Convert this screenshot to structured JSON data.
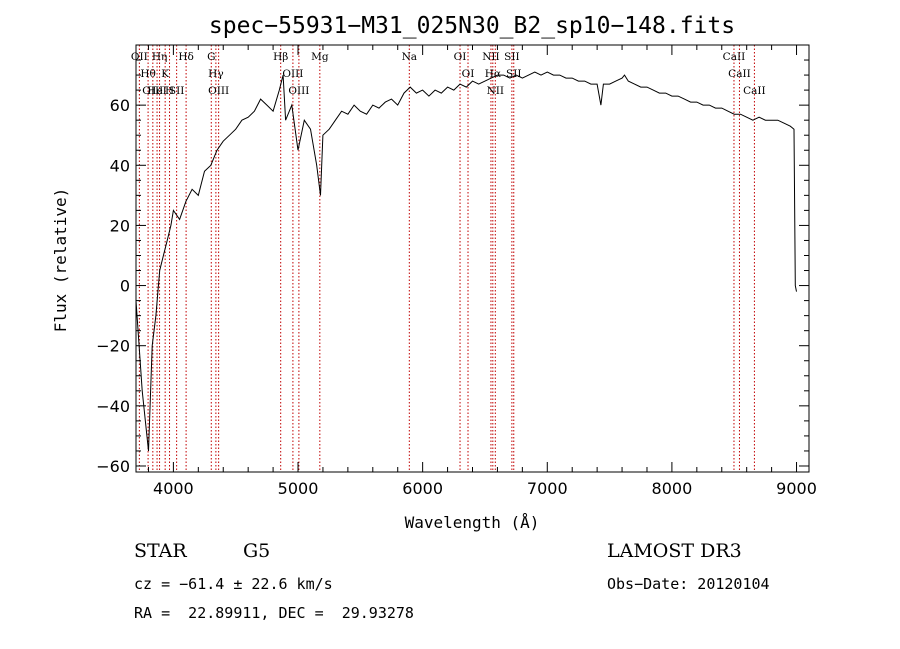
{
  "chart_data": {
    "type": "line",
    "title": "spec−55931−M31_025N30_B2_sp10−148.fits",
    "xlabel": "Wavelength (Å)",
    "ylabel": "Flux (relative)",
    "xlim": [
      3700,
      9100
    ],
    "ylim": [
      -62,
      80
    ],
    "x_ticks": [
      4000,
      5000,
      6000,
      7000,
      8000,
      9000
    ],
    "x_tick_labels": [
      "4000",
      "5000",
      "6000",
      "7000",
      "8000",
      "9000"
    ],
    "y_ticks": [
      -60,
      -40,
      -20,
      0,
      20,
      40,
      60
    ],
    "y_tick_labels": [
      "−60",
      "−40",
      "−20",
      "0",
      "20",
      "40",
      "60"
    ],
    "series": [
      {
        "name": "spectrum",
        "color": "#000000",
        "x": [
          3700,
          3750,
          3800,
          3830,
          3860,
          3890,
          3920,
          3950,
          3980,
          4000,
          4050,
          4100,
          4150,
          4200,
          4250,
          4300,
          4350,
          4400,
          4450,
          4500,
          4550,
          4600,
          4650,
          4700,
          4750,
          4800,
          4850,
          4880,
          4900,
          4950,
          5000,
          5050,
          5100,
          5150,
          5180,
          5200,
          5250,
          5300,
          5350,
          5400,
          5450,
          5500,
          5550,
          5600,
          5650,
          5700,
          5750,
          5800,
          5850,
          5900,
          5950,
          6000,
          6050,
          6100,
          6150,
          6200,
          6250,
          6300,
          6350,
          6400,
          6450,
          6500,
          6550,
          6600,
          6650,
          6700,
          6750,
          6800,
          6850,
          6900,
          6950,
          7000,
          7050,
          7100,
          7150,
          7200,
          7250,
          7300,
          7350,
          7400,
          7430,
          7450,
          7500,
          7550,
          7600,
          7620,
          7650,
          7700,
          7750,
          7800,
          7850,
          7900,
          7950,
          8000,
          8050,
          8100,
          8150,
          8200,
          8250,
          8300,
          8350,
          8400,
          8450,
          8500,
          8550,
          8600,
          8650,
          8700,
          8750,
          8800,
          8850,
          8900,
          8950,
          8980,
          8990,
          9000
        ],
        "y": [
          -5,
          -35,
          -55,
          -20,
          -10,
          5,
          10,
          15,
          20,
          25,
          22,
          28,
          32,
          30,
          38,
          40,
          45,
          48,
          50,
          52,
          55,
          56,
          58,
          62,
          60,
          58,
          65,
          70,
          55,
          60,
          45,
          55,
          52,
          40,
          30,
          50,
          52,
          55,
          58,
          57,
          60,
          58,
          57,
          60,
          59,
          61,
          62,
          60,
          64,
          66,
          64,
          65,
          63,
          65,
          64,
          66,
          65,
          67,
          66,
          68,
          67,
          68,
          69,
          70,
          70,
          69,
          70,
          69,
          70,
          71,
          70,
          71,
          70,
          70,
          69,
          69,
          68,
          68,
          67,
          67,
          60,
          67,
          67,
          68,
          69,
          70,
          68,
          67,
          66,
          66,
          65,
          64,
          64,
          63,
          63,
          62,
          61,
          61,
          60,
          60,
          59,
          59,
          58,
          57,
          57,
          56,
          55,
          56,
          55,
          55,
          55,
          54,
          53,
          52,
          0,
          -2
        ]
      }
    ],
    "line_markers": [
      {
        "wavelength": 3727,
        "label": "OII"
      },
      {
        "wavelength": 3797,
        "label": "Hθ"
      },
      {
        "wavelength": 3835,
        "label": "OIII"
      },
      {
        "wavelength": 3869,
        "label": "HeI"
      },
      {
        "wavelength": 3889,
        "label": "Hη"
      },
      {
        "wavelength": 3934,
        "label": "K"
      },
      {
        "wavelength": 3969,
        "label": "H"
      },
      {
        "wavelength": 4026,
        "label": "SII"
      },
      {
        "wavelength": 4102,
        "label": "Hδ"
      },
      {
        "wavelength": 4304,
        "label": "G"
      },
      {
        "wavelength": 4341,
        "label": "Hγ"
      },
      {
        "wavelength": 4363,
        "label": "OIII"
      },
      {
        "wavelength": 4861,
        "label": "Hβ"
      },
      {
        "wavelength": 4959,
        "label": "OIII"
      },
      {
        "wavelength": 5007,
        "label": "OIII"
      },
      {
        "wavelength": 5175,
        "label": "Mg"
      },
      {
        "wavelength": 5893,
        "label": "Na"
      },
      {
        "wavelength": 6300,
        "label": "OI"
      },
      {
        "wavelength": 6364,
        "label": "OI"
      },
      {
        "wavelength": 6548,
        "label": "NII"
      },
      {
        "wavelength": 6563,
        "label": "Hα"
      },
      {
        "wavelength": 6583,
        "label": "NII"
      },
      {
        "wavelength": 6716,
        "label": "SII"
      },
      {
        "wavelength": 6731,
        "label": "SII"
      },
      {
        "wavelength": 8498,
        "label": "CaII"
      },
      {
        "wavelength": 8542,
        "label": "CaII"
      },
      {
        "wavelength": 8662,
        "label": "CaII"
      }
    ],
    "marker_color": "#c00000"
  },
  "info": {
    "class": "STAR",
    "subclass": "G5",
    "survey": "LAMOST DR3",
    "cz": "cz = −61.4 ± 22.6 km/s",
    "obs_date": "Obs−Date: 20120104",
    "radec": "RA =  22.89911, DEC =  29.93278"
  }
}
